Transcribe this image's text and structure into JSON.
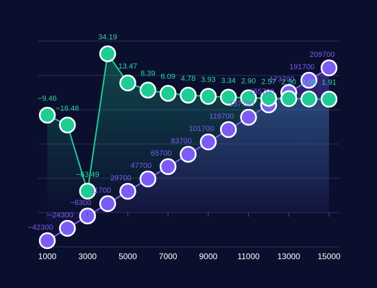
{
  "chart_data": {
    "type": "line",
    "x": [
      1000,
      2000,
      3000,
      4000,
      5000,
      6000,
      7000,
      8000,
      9000,
      10000,
      11000,
      12000,
      13000,
      14000,
      15000
    ],
    "x_ticks": [
      1000,
      3000,
      5000,
      7000,
      9000,
      11000,
      13000,
      15000
    ],
    "ylim": [
      -50000,
      250000
    ],
    "grid": true,
    "legend": "none",
    "series": [
      {
        "color": "#1fcc96",
        "values": [
          -9.46,
          -16.46,
          -63.49,
          34.19,
          13.47,
          8.39,
          6.09,
          4.78,
          3.93,
          3.34,
          2.9,
          2.57,
          2.3,
          2.09,
          1.91
        ],
        "labels": [
          "−9.46",
          "−16.46",
          "−63.49",
          "34.19",
          "13.47",
          "8.39",
          "6.09",
          "4.78",
          "3.93",
          "3.34",
          "2.90",
          "2.57",
          "2.30",
          "2.09",
          "1.91"
        ]
      },
      {
        "color": "#7b5cf5",
        "values": [
          -42300,
          -24300,
          -6300,
          11700,
          29700,
          47700,
          65700,
          83700,
          101700,
          119700,
          137700,
          155700,
          173700,
          191700,
          209700
        ],
        "labels": [
          "−42300",
          "−24300",
          "−6300",
          "11700",
          "29700",
          "47700",
          "65700",
          "83700",
          "101700",
          "119700",
          "137700",
          "155700",
          "173700",
          "191700",
          "209700"
        ]
      }
    ]
  }
}
